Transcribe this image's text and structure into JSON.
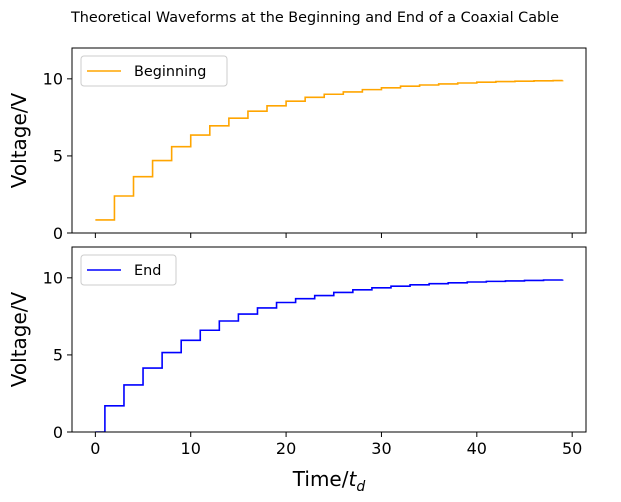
{
  "chart_data": [
    {
      "type": "line",
      "title": "Theoretical Waveforms at the Beginning and End of a Coaxial Cable",
      "xlabel": "",
      "ylabel": "Voltage/V",
      "xlim": [
        -2.45,
        51.45
      ],
      "ylim": [
        0,
        12
      ],
      "xticks": [
        0,
        10,
        20,
        30,
        40,
        50
      ],
      "xtick_labels_visible": false,
      "yticks": [
        0,
        5,
        10
      ],
      "legend_position": "upper-left",
      "grid": false,
      "series": [
        {
          "name": "Beginning",
          "color": "#FFA500",
          "step": "post",
          "x": [
            0,
            2,
            4,
            6,
            8,
            10,
            12,
            14,
            16,
            18,
            20,
            22,
            24,
            26,
            28,
            30,
            32,
            34,
            36,
            38,
            40,
            42,
            44,
            46,
            48,
            49
          ],
          "y": [
            0.85,
            2.4,
            3.65,
            4.7,
            5.6,
            6.35,
            6.95,
            7.45,
            7.9,
            8.25,
            8.55,
            8.8,
            9.0,
            9.15,
            9.3,
            9.42,
            9.52,
            9.6,
            9.67,
            9.73,
            9.78,
            9.82,
            9.85,
            9.87,
            9.89,
            9.9
          ]
        }
      ]
    },
    {
      "type": "line",
      "title": "",
      "xlabel": "Time/t_d",
      "ylabel": "Voltage/V",
      "xlim": [
        -2.45,
        51.45
      ],
      "ylim": [
        0,
        12
      ],
      "xticks": [
        0,
        10,
        20,
        30,
        40,
        50
      ],
      "yticks": [
        0,
        5,
        10
      ],
      "legend_position": "upper-left",
      "grid": false,
      "series": [
        {
          "name": "End",
          "color": "#0000FF",
          "step": "post",
          "x": [
            0,
            1,
            3,
            5,
            7,
            9,
            11,
            13,
            15,
            17,
            19,
            21,
            23,
            25,
            27,
            29,
            31,
            33,
            35,
            37,
            39,
            41,
            43,
            45,
            47,
            49
          ],
          "y": [
            0.0,
            1.7,
            3.05,
            4.15,
            5.15,
            5.95,
            6.6,
            7.2,
            7.65,
            8.05,
            8.4,
            8.65,
            8.85,
            9.05,
            9.22,
            9.35,
            9.46,
            9.55,
            9.62,
            9.68,
            9.73,
            9.77,
            9.8,
            9.83,
            9.86,
            9.88
          ]
        }
      ]
    }
  ]
}
